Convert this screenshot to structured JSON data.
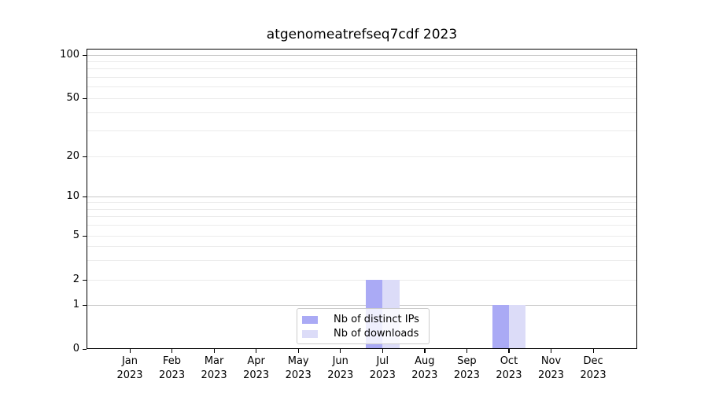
{
  "chart_data": {
    "type": "bar",
    "title": "atgenomeatrefseq7cdf 2023",
    "categories": [
      "Jan",
      "Feb",
      "Mar",
      "Apr",
      "May",
      "Jun",
      "Jul",
      "Aug",
      "Sep",
      "Oct",
      "Nov",
      "Dec"
    ],
    "category_year": "2023",
    "series": [
      {
        "name": "Nb of distinct IPs",
        "color": "#aaaaf5",
        "values": [
          0,
          0,
          0,
          0,
          0,
          0,
          2,
          0,
          0,
          1,
          0,
          0
        ]
      },
      {
        "name": "Nb of downloads",
        "color": "#dcdcf8",
        "values": [
          0,
          0,
          0,
          0,
          0,
          0,
          2,
          0,
          0,
          1,
          0,
          0
        ]
      }
    ],
    "xlabel": "",
    "ylabel": "",
    "yscale": "symlog",
    "ylim": [
      0,
      100
    ],
    "y_ticks_labeled": [
      0,
      1,
      2,
      5,
      10,
      20,
      50,
      100
    ],
    "y_gridlines_major": [
      1,
      10,
      100
    ],
    "y_gridlines_minor": [
      2,
      3,
      4,
      5,
      6,
      7,
      8,
      9,
      20,
      30,
      40,
      50,
      60,
      70,
      80,
      90
    ],
    "grid": true,
    "legend_position": "lower center"
  },
  "colors": {
    "grid_major": "#c8c8c8",
    "grid_minor": "#ebebeb",
    "spine": "#000000",
    "text": "#000000",
    "legend_border": "#cccccc",
    "background": "#ffffff"
  }
}
